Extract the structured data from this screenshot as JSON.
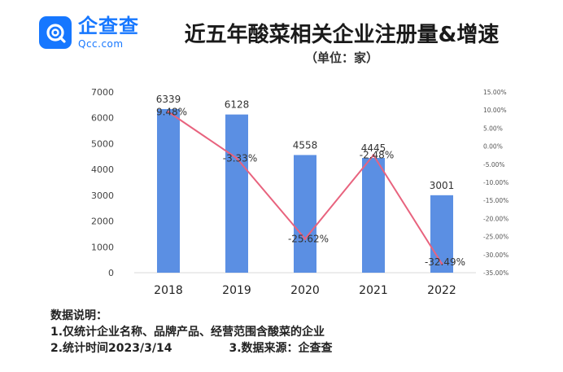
{
  "header": {
    "logo_cn": "企查查",
    "logo_en": "Qcc.com",
    "title": "近五年酸菜相关企业注册量&增速",
    "unit": "（单位：家）"
  },
  "notes": {
    "heading": "数据说明：",
    "line1": "1.仅统计企业名称、品牌产品、经营范围含酸菜的企业",
    "line2_a": "2.统计时间2023/3/14",
    "line2_b": "3.数据来源：企查查"
  },
  "colors": {
    "bar": "#5b8fe3",
    "line": "#e8637e",
    "brand": "#1677ff"
  },
  "chart_data": {
    "type": "bar",
    "categories": [
      "2018",
      "2019",
      "2020",
      "2021",
      "2022"
    ],
    "series": [
      {
        "values": [
          6339,
          6128,
          4558,
          4445,
          3001
        ],
        "axis": "left",
        "kind": "bar"
      },
      {
        "values": [
          9.48,
          -3.33,
          -25.62,
          -2.48,
          -32.49
        ],
        "axis": "right",
        "kind": "line",
        "labels": [
          "9.48%",
          "-3.33%",
          "-25.62%",
          "-2.48%",
          "-32.49%"
        ]
      }
    ],
    "ylim_left": [
      0,
      7000
    ],
    "yticks_left": [
      0,
      1000,
      2000,
      3000,
      4000,
      5000,
      6000,
      7000
    ],
    "ylim_right": [
      -35,
      15
    ],
    "yticks_right": [
      "15.00%",
      "10.00%",
      "5.00%",
      "0.00%",
      "-5.00%",
      "-10.00%",
      "-15.00%",
      "-20.00%",
      "-25.00%",
      "-30.00%",
      "-35.00%"
    ],
    "grid": false,
    "legend": "none"
  }
}
